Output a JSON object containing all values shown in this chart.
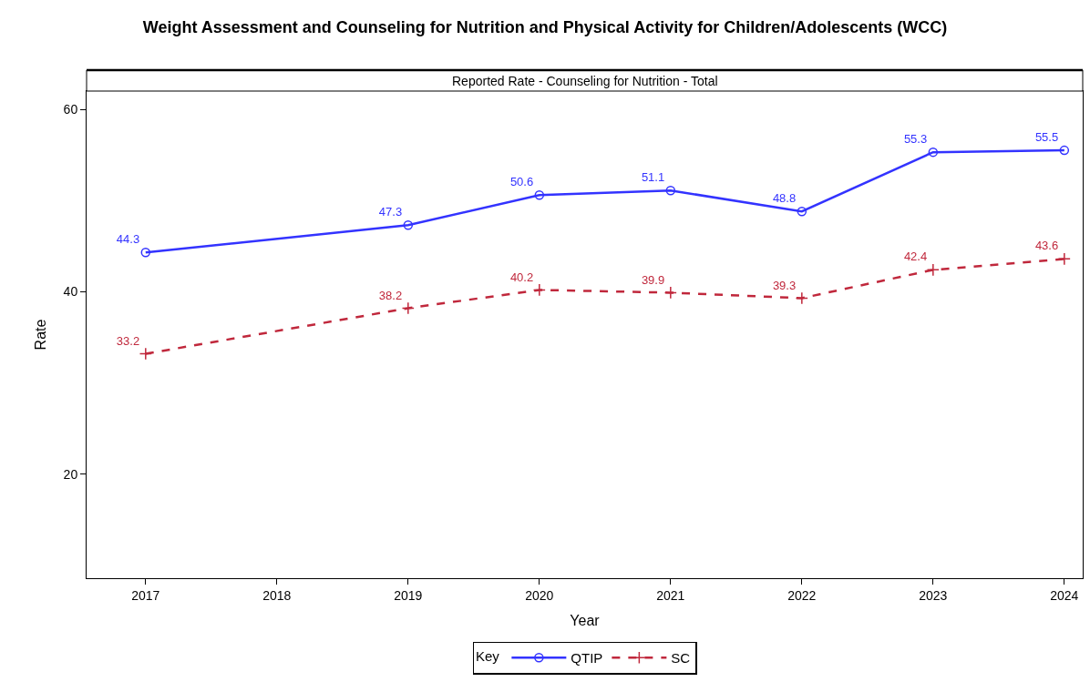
{
  "chart_data": {
    "type": "line",
    "title": "Weight Assessment and Counseling for Nutrition and Physical Activity for Children/Adolescents (WCC)",
    "subtitle": "Reported Rate - Counseling for Nutrition - Total",
    "xlabel": "Year",
    "ylabel": "Rate",
    "legend_title": "Key",
    "x": [
      2017,
      2019,
      2020,
      2021,
      2022,
      2023,
      2024
    ],
    "series": [
      {
        "name": "QTIP",
        "color": "#3333ff",
        "marker": "circle",
        "line_style": "solid",
        "values": [
          44.3,
          47.3,
          50.6,
          51.1,
          48.8,
          55.3,
          55.5
        ]
      },
      {
        "name": "SC",
        "color": "#c0283c",
        "marker": "cross",
        "line_style": "dashed",
        "values": [
          33.2,
          38.2,
          40.2,
          39.9,
          39.3,
          42.4,
          43.6
        ]
      }
    ],
    "xlim": [
      2016.55,
      2024.14
    ],
    "xticks": [
      2017,
      2018,
      2019,
      2020,
      2021,
      2022,
      2023,
      2024
    ],
    "ylim": [
      8.6,
      62
    ],
    "yticks": [
      20,
      40,
      60
    ],
    "data_labels": true,
    "grid": false,
    "legend": "bottom"
  }
}
